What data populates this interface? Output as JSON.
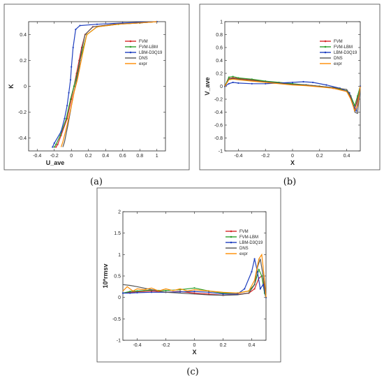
{
  "panels": [
    {
      "caption": "(a)",
      "chart_data": {
        "type": "line",
        "xlabel": "U_ave",
        "ylabel": "K",
        "xlim": [
          -0.5,
          1.1
        ],
        "ylim": [
          -0.5,
          0.5
        ],
        "xticks": [
          "-0.4",
          "-0.2",
          "0",
          "0.2",
          "0.4",
          "0.6",
          "0.8",
          "1"
        ],
        "xtick_values": [
          -0.4,
          -0.2,
          0,
          0.2,
          0.4,
          0.6,
          0.8,
          1
        ],
        "yticks": [
          "-0.4",
          "-0.2",
          "0",
          "0.2",
          "0.4"
        ],
        "ytick_values": [
          -0.4,
          -0.2,
          0,
          0.2,
          0.4
        ],
        "legend_position": "top-right",
        "series": [
          {
            "name": "FVM",
            "color": "#d62728",
            "marker": true,
            "x": [
              -0.18,
              -0.16,
              -0.12,
              -0.05,
              0.0,
              0.03,
              0.06,
              0.09,
              0.12,
              0.16,
              0.25,
              0.5,
              0.8,
              1.0
            ],
            "y": [
              -0.47,
              -0.45,
              -0.38,
              -0.25,
              -0.1,
              0.0,
              0.1,
              0.2,
              0.3,
              0.4,
              0.46,
              0.48,
              0.49,
              0.5
            ]
          },
          {
            "name": "FVM-LBM",
            "color": "#2ca02c",
            "marker": true,
            "x": [
              -0.2,
              -0.18,
              -0.13,
              -0.06,
              -0.01,
              0.03,
              0.07,
              0.1,
              0.14,
              0.18,
              0.3,
              0.55,
              0.8,
              1.0
            ],
            "y": [
              -0.47,
              -0.45,
              -0.38,
              -0.25,
              -0.1,
              0.0,
              0.1,
              0.2,
              0.3,
              0.4,
              0.46,
              0.48,
              0.49,
              0.5
            ]
          },
          {
            "name": "LBM-D3Q19",
            "color": "#1f3fbf",
            "marker": true,
            "x": [
              -0.22,
              -0.2,
              -0.12,
              -0.08,
              -0.05,
              -0.03,
              -0.01,
              0.0,
              0.02,
              0.05,
              0.1,
              0.3,
              0.6,
              1.0
            ],
            "y": [
              -0.47,
              -0.44,
              -0.35,
              -0.25,
              -0.15,
              -0.05,
              0.05,
              0.15,
              0.3,
              0.44,
              0.47,
              0.48,
              0.49,
              0.5
            ]
          },
          {
            "name": "DNS",
            "color": "#555555",
            "marker": false,
            "x": [
              -0.1,
              -0.08,
              -0.04,
              0.0,
              0.03,
              0.06,
              0.09,
              0.12,
              0.16,
              0.25,
              0.5,
              0.8,
              1.0
            ],
            "y": [
              -0.47,
              -0.43,
              -0.3,
              -0.15,
              -0.05,
              0.05,
              0.15,
              0.28,
              0.4,
              0.46,
              0.48,
              0.49,
              0.5
            ]
          },
          {
            "name": "expr",
            "color": "#ff8c00",
            "marker": false,
            "x": [
              -0.12,
              -0.1,
              -0.05,
              0.0,
              0.03,
              0.07,
              0.1,
              0.14,
              0.18,
              0.3,
              0.55,
              0.8,
              1.0
            ],
            "y": [
              -0.47,
              -0.43,
              -0.3,
              -0.15,
              -0.05,
              0.05,
              0.15,
              0.28,
              0.4,
              0.46,
              0.48,
              0.49,
              0.5
            ]
          }
        ]
      }
    },
    {
      "caption": "(b)",
      "chart_data": {
        "type": "line",
        "xlabel": "X",
        "ylabel": "V_ave",
        "xlim": [
          -0.5,
          0.5
        ],
        "ylim": [
          -1,
          1
        ],
        "xticks": [
          "-0.4",
          "-0.2",
          "0",
          "0.2",
          "0.4"
        ],
        "xtick_values": [
          -0.4,
          -0.2,
          0,
          0.2,
          0.4
        ],
        "yticks": [
          "-1",
          "-0.8",
          "-0.6",
          "-0.4",
          "-0.2",
          "0",
          "0.2",
          "0.4",
          "0.6",
          "0.8",
          "1"
        ],
        "ytick_values": [
          -1,
          -0.8,
          -0.6,
          -0.4,
          -0.2,
          0,
          0.2,
          0.4,
          0.6,
          0.8,
          1
        ],
        "legend_position": "top-right",
        "series": [
          {
            "name": "FVM",
            "color": "#d62728",
            "marker": true,
            "x": [
              -0.5,
              -0.47,
              -0.44,
              -0.4,
              -0.3,
              -0.2,
              -0.1,
              0.0,
              0.1,
              0.2,
              0.3,
              0.4,
              0.43,
              0.46,
              0.48,
              0.5
            ],
            "y": [
              0.0,
              0.12,
              0.13,
              0.12,
              0.1,
              0.07,
              0.05,
              0.03,
              0.02,
              0.0,
              -0.03,
              -0.08,
              -0.18,
              -0.35,
              -0.2,
              0.0
            ]
          },
          {
            "name": "FVM-LBM",
            "color": "#2ca02c",
            "marker": true,
            "x": [
              -0.5,
              -0.47,
              -0.44,
              -0.4,
              -0.3,
              -0.2,
              -0.1,
              0.0,
              0.1,
              0.2,
              0.3,
              0.4,
              0.43,
              0.46,
              0.48,
              0.5
            ],
            "y": [
              0.0,
              0.14,
              0.15,
              0.13,
              0.11,
              0.08,
              0.06,
              0.04,
              0.02,
              0.0,
              -0.02,
              -0.07,
              -0.15,
              -0.3,
              -0.15,
              0.0
            ]
          },
          {
            "name": "LBM-D3Q19",
            "color": "#1f3fbf",
            "marker": true,
            "x": [
              -0.5,
              -0.47,
              -0.44,
              -0.4,
              -0.3,
              -0.2,
              -0.1,
              0.0,
              0.08,
              0.15,
              0.25,
              0.35,
              0.42,
              0.45,
              0.47,
              0.5
            ],
            "y": [
              0.0,
              0.04,
              0.06,
              0.05,
              0.04,
              0.04,
              0.05,
              0.06,
              0.07,
              0.06,
              0.02,
              -0.03,
              -0.1,
              -0.3,
              -0.38,
              0.0
            ]
          },
          {
            "name": "DNS",
            "color": "#555555",
            "marker": false,
            "x": [
              -0.5,
              -0.47,
              -0.44,
              -0.4,
              -0.3,
              -0.2,
              -0.1,
              0.0,
              0.1,
              0.2,
              0.3,
              0.4,
              0.43,
              0.46,
              0.48,
              0.5
            ],
            "y": [
              0.0,
              0.11,
              0.12,
              0.11,
              0.09,
              0.07,
              0.05,
              0.03,
              0.02,
              0.0,
              -0.02,
              -0.05,
              -0.15,
              -0.4,
              -0.42,
              0.0
            ]
          },
          {
            "name": "expr",
            "color": "#ff8c00",
            "marker": false,
            "x": [
              -0.5,
              -0.47,
              -0.44,
              -0.4,
              -0.3,
              -0.2,
              -0.1,
              0.0,
              0.1,
              0.2,
              0.3,
              0.4,
              0.43,
              0.46,
              0.48,
              0.5
            ],
            "y": [
              0.0,
              0.1,
              0.11,
              0.1,
              0.08,
              0.06,
              0.04,
              0.02,
              0.01,
              -0.01,
              -0.03,
              -0.08,
              -0.2,
              -0.38,
              -0.3,
              0.0
            ]
          }
        ]
      }
    },
    {
      "caption": "(c)",
      "chart_data": {
        "type": "line",
        "xlabel": "X",
        "ylabel": "10*rmsv",
        "xlim": [
          -0.5,
          0.5
        ],
        "ylim": [
          -1,
          2
        ],
        "xticks": [
          "-0.4",
          "-0.2",
          "0",
          "0.2",
          "0.4"
        ],
        "xtick_values": [
          -0.4,
          -0.2,
          0,
          0.2,
          0.4
        ],
        "yticks": [
          "-1",
          "-0.5",
          "0",
          "0.5",
          "1",
          "1.5",
          "2"
        ],
        "ytick_values": [
          -1,
          -0.5,
          0,
          0.5,
          1,
          1.5,
          2
        ],
        "legend_position": "top-right",
        "series": [
          {
            "name": "FVM",
            "color": "#d62728",
            "marker": true,
            "x": [
              -0.5,
              -0.45,
              -0.4,
              -0.3,
              -0.2,
              -0.1,
              0.0,
              0.1,
              0.2,
              0.3,
              0.38,
              0.42,
              0.45,
              0.47,
              0.49,
              0.5
            ],
            "y": [
              0.1,
              0.12,
              0.13,
              0.15,
              0.12,
              0.14,
              0.1,
              0.08,
              0.05,
              0.07,
              0.1,
              0.2,
              0.45,
              0.5,
              0.2,
              0.0
            ]
          },
          {
            "name": "FVM-LBM",
            "color": "#2ca02c",
            "marker": true,
            "x": [
              -0.5,
              -0.45,
              -0.4,
              -0.3,
              -0.2,
              -0.1,
              0.0,
              0.1,
              0.2,
              0.3,
              0.38,
              0.42,
              0.45,
              0.47,
              0.49,
              0.5
            ],
            "y": [
              0.1,
              0.14,
              0.15,
              0.17,
              0.16,
              0.18,
              0.22,
              0.15,
              0.1,
              0.1,
              0.15,
              0.3,
              0.65,
              0.5,
              0.1,
              0.0
            ]
          },
          {
            "name": "LBM-D3Q19",
            "color": "#1f3fbf",
            "marker": true,
            "x": [
              -0.5,
              -0.45,
              -0.4,
              -0.3,
              -0.2,
              -0.1,
              0.0,
              0.1,
              0.2,
              0.3,
              0.35,
              0.4,
              0.42,
              0.44,
              0.46,
              0.48,
              0.5
            ],
            "y": [
              0.1,
              0.1,
              0.11,
              0.12,
              0.12,
              0.13,
              0.14,
              0.12,
              0.08,
              0.08,
              0.2,
              0.6,
              0.9,
              0.6,
              0.2,
              0.3,
              0.0
            ]
          },
          {
            "name": "DNS",
            "color": "#555555",
            "marker": false,
            "x": [
              -0.5,
              -0.45,
              -0.4,
              -0.3,
              -0.2,
              -0.1,
              0.0,
              0.1,
              0.2,
              0.3,
              0.38,
              0.42,
              0.44,
              0.46,
              0.48,
              0.5
            ],
            "y": [
              0.3,
              0.28,
              0.25,
              0.18,
              0.12,
              0.1,
              0.08,
              0.06,
              0.05,
              0.06,
              0.1,
              0.3,
              0.7,
              0.9,
              0.5,
              0.0
            ]
          },
          {
            "name": "expr",
            "color": "#ff8c00",
            "marker": false,
            "x": [
              -0.5,
              -0.47,
              -0.43,
              -0.4,
              -0.35,
              -0.3,
              -0.25,
              -0.2,
              -0.15,
              -0.1,
              -0.05,
              0.0,
              0.1,
              0.2,
              0.3,
              0.38,
              0.42,
              0.45,
              0.47,
              0.49,
              0.5
            ],
            "y": [
              0.15,
              0.25,
              0.15,
              0.2,
              0.18,
              0.22,
              0.15,
              0.2,
              0.16,
              0.2,
              0.15,
              0.18,
              0.15,
              0.12,
              0.1,
              0.15,
              0.4,
              0.9,
              1.0,
              0.4,
              0.0
            ]
          }
        ]
      }
    }
  ]
}
